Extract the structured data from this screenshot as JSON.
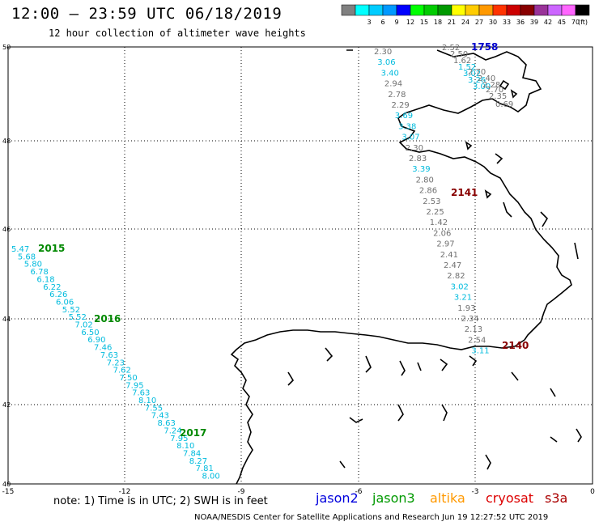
{
  "header": {
    "title": "12:00 – 23:59 UTC 06/18/2019",
    "subtitle": "12 hour collection of altimeter wave heights"
  },
  "scale": {
    "unit": "(ft)",
    "items": [
      {
        "label": "",
        "color": "#808080"
      },
      {
        "label": "3",
        "color": "#00ffff"
      },
      {
        "label": "6",
        "color": "#00ccff"
      },
      {
        "label": "9",
        "color": "#0099ff"
      },
      {
        "label": "12",
        "color": "#0000ff"
      },
      {
        "label": "15",
        "color": "#00ff00"
      },
      {
        "label": "18",
        "color": "#00cc00"
      },
      {
        "label": "21",
        "color": "#009900"
      },
      {
        "label": "24",
        "color": "#ffff00"
      },
      {
        "label": "27",
        "color": "#ffcc00"
      },
      {
        "label": "30",
        "color": "#ff9900"
      },
      {
        "label": "33",
        "color": "#ff3300"
      },
      {
        "label": "36",
        "color": "#cc0000"
      },
      {
        "label": "39",
        "color": "#880000"
      },
      {
        "label": "42",
        "color": "#993399"
      },
      {
        "label": "45",
        "color": "#cc66ff"
      },
      {
        "label": "70",
        "color": "#ff66ff"
      },
      {
        "label": "",
        "color": "#000000"
      }
    ]
  },
  "axes": {
    "lon_ticks": [
      "-15",
      "-12",
      "-9",
      "-6",
      "-3",
      "0"
    ],
    "lat_ticks": [
      "50",
      "48",
      "46",
      "44",
      "42",
      "40"
    ]
  },
  "tracks": [
    {
      "time": "2015",
      "time_color": "#008800",
      "value_color": "#00bbdd",
      "values": [
        "5.47",
        "5.68",
        "5.80",
        "6.78",
        "6.18",
        "6.22",
        "6.26",
        "6.06",
        "5.52",
        "5.52",
        "7.02",
        "6.50",
        "6.90",
        "7.46",
        "7.63",
        "7.23",
        "7.62",
        "7.50",
        "7.95",
        "7.63",
        "8.10",
        "7.55",
        "7.43",
        "8.63",
        "7.24",
        "7.95",
        "8.10",
        "7.84",
        "8.27",
        "7.81",
        "8.00"
      ]
    },
    {
      "time": "2016",
      "time_color": "#008800"
    },
    {
      "time": "2017",
      "time_color": "#008800"
    },
    {
      "time": "1758",
      "time_color": "#0000cc",
      "values": [
        "2.52",
        "2.50",
        "1.62",
        "1.52",
        "3.02",
        "3.26",
        "3.00",
        "2.70",
        "2.40",
        "2.28",
        "2.70",
        "2.35",
        "0.69"
      ]
    },
    {
      "time": "2141",
      "time_color": "#880000",
      "values": [
        "2.30",
        "3.06",
        "3.40",
        "2.94",
        "2.78",
        "2.29",
        "3.69",
        "3.38",
        "3.07",
        "2.30",
        "2.83",
        "3.39",
        "2.80",
        "2.86",
        "2.53",
        "2.25",
        "1.42",
        "2.06",
        "2.97",
        "2.41",
        "2.47",
        "2.82",
        "3.02",
        "3.21",
        "1.93",
        "2.34",
        "2.13",
        "2.54",
        "3.11"
      ]
    },
    {
      "time": "2140",
      "time_color": "#880000"
    }
  ],
  "footer": {
    "note": "note:  1) Time is in UTC;  2) SWH is in feet",
    "missions": [
      {
        "label": "jason2",
        "color": "#0000dd"
      },
      {
        "label": "jason3",
        "color": "#009900"
      },
      {
        "label": "altika",
        "color": "#ff9900"
      },
      {
        "label": "cryosat",
        "color": "#dd0000"
      },
      {
        "label": "s3a",
        "color": "#aa0000"
      }
    ],
    "credit": "NOAA/NESDIS Center for Satellite Applications and Research     Jun 19 12:27:52 UTC 2019"
  }
}
